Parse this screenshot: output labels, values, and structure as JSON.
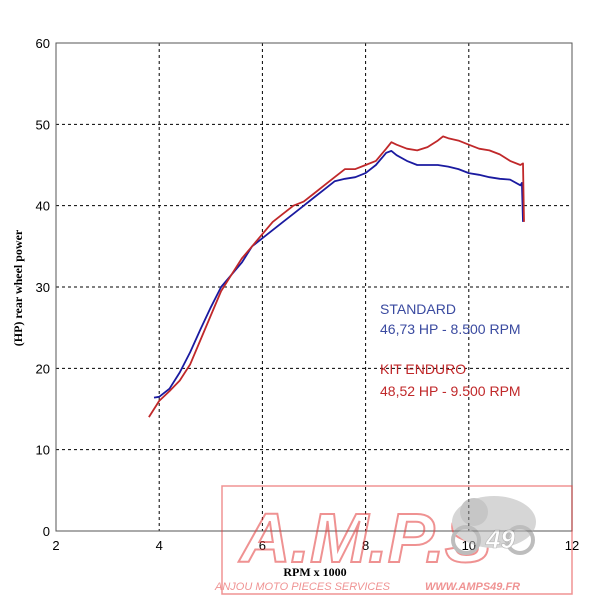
{
  "chart_data": {
    "type": "line",
    "title": "",
    "xlabel": "RPM x 1000",
    "ylabel": "(HP) rear wheel power",
    "xlim": [
      2,
      12
    ],
    "ylim": [
      0,
      60
    ],
    "x_ticks": [
      2,
      4,
      6,
      8,
      10,
      12
    ],
    "y_ticks": [
      0,
      10,
      20,
      30,
      40,
      50,
      60
    ],
    "grid": true,
    "legend": "none",
    "series": [
      {
        "name": "STANDARD",
        "color": "#1a1aa0",
        "x": [
          3.9,
          4.0,
          4.2,
          4.4,
          4.6,
          4.8,
          5.0,
          5.2,
          5.4,
          5.6,
          5.8,
          6.0,
          6.2,
          6.4,
          6.6,
          6.8,
          7.0,
          7.2,
          7.4,
          7.6,
          7.8,
          8.0,
          8.2,
          8.4,
          8.5,
          8.6,
          8.8,
          9.0,
          9.2,
          9.4,
          9.6,
          9.8,
          10.0,
          10.2,
          10.4,
          10.6,
          10.8,
          11.0,
          11.03,
          11.05
        ],
        "y": [
          16.4,
          16.5,
          17.5,
          19.5,
          22.0,
          24.8,
          27.5,
          30.0,
          31.5,
          33.0,
          35.0,
          36.0,
          37.0,
          38.0,
          39.0,
          40.0,
          41.0,
          42.0,
          43.0,
          43.3,
          43.5,
          44.0,
          45.0,
          46.5,
          46.73,
          46.2,
          45.5,
          45.0,
          45.0,
          45.0,
          44.8,
          44.5,
          44.0,
          43.8,
          43.5,
          43.3,
          43.2,
          42.5,
          42.8,
          38.0
        ]
      },
      {
        "name": "KIT ENDURO",
        "color": "#c0282a",
        "x": [
          3.8,
          4.0,
          4.2,
          4.4,
          4.6,
          4.8,
          5.0,
          5.2,
          5.4,
          5.6,
          5.8,
          6.0,
          6.2,
          6.4,
          6.6,
          6.8,
          7.0,
          7.2,
          7.4,
          7.6,
          7.8,
          8.0,
          8.2,
          8.4,
          8.5,
          8.6,
          8.8,
          9.0,
          9.2,
          9.4,
          9.5,
          9.6,
          9.8,
          10.0,
          10.2,
          10.4,
          10.6,
          10.8,
          11.0,
          11.05,
          11.07
        ],
        "y": [
          14.0,
          16.0,
          17.2,
          18.5,
          20.5,
          23.5,
          26.5,
          29.5,
          31.5,
          33.5,
          35.0,
          36.5,
          38.0,
          39.0,
          40.0,
          40.5,
          41.5,
          42.5,
          43.5,
          44.5,
          44.5,
          45.0,
          45.5,
          47.0,
          47.8,
          47.5,
          47.0,
          46.8,
          47.2,
          48.0,
          48.52,
          48.3,
          48.0,
          47.5,
          47.0,
          46.8,
          46.3,
          45.5,
          45.0,
          45.2,
          38.0
        ]
      }
    ],
    "annotations": [
      {
        "series": "STANDARD",
        "line1": "STANDARD",
        "line2": "46,73 HP - 8.500 RPM"
      },
      {
        "series": "KIT ENDURO",
        "line1": "KIT ENDURO",
        "line2": "48,52 HP - 9.500 RPM"
      }
    ]
  },
  "watermark": {
    "logo": "A.M.P.S",
    "tagline": "ANJOU MOTO PIECES SERVICES",
    "website": "WWW.AMPS49.FR",
    "badge": "49",
    "icon": "motorcycle-rider-icon",
    "color": "#e33a3a"
  }
}
